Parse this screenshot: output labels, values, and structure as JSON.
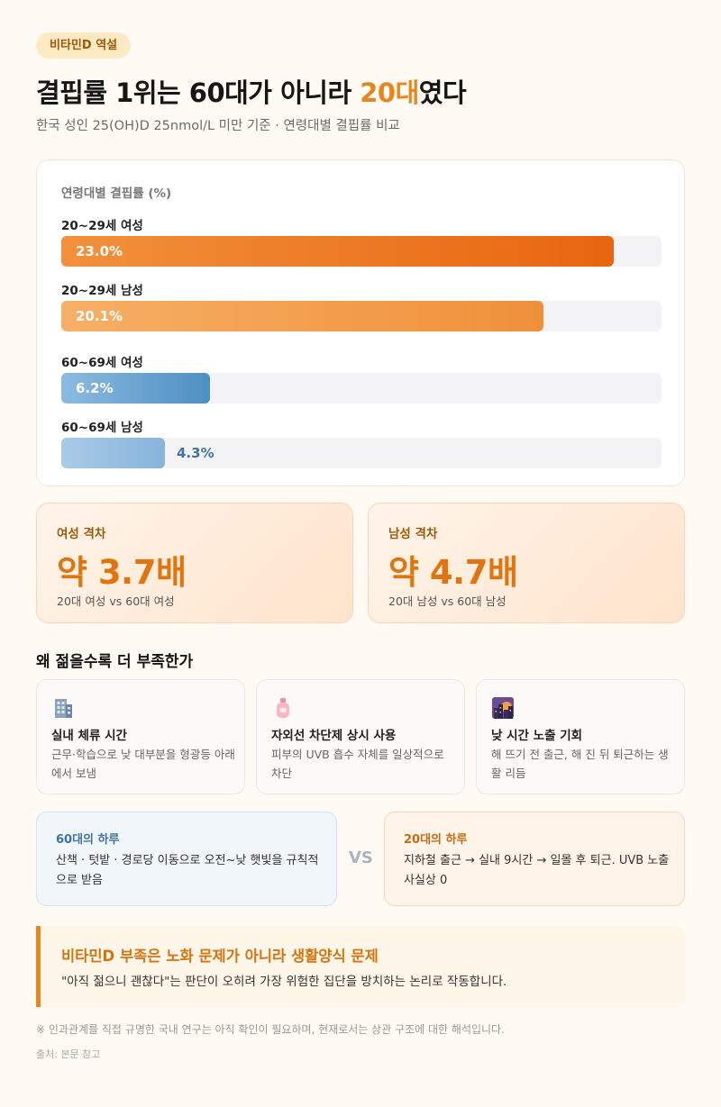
{
  "tag": "비타민D 역설",
  "title": {
    "prefix": "결핍률 1위는 60대가 아니라 ",
    "highlight": "20대",
    "suffix": "였다"
  },
  "subtitle": "한국 성인 25(OH)D 25nmol/L 미만 기준 · 연령대별 결핍률 비교",
  "chart_data": {
    "type": "bar",
    "orientation": "horizontal",
    "title": "연령대별 결핍률 (%)",
    "categories": [
      "20~29세 여성",
      "20~29세 남성",
      "60~69세 여성",
      "60~69세 남성"
    ],
    "values": [
      23.0,
      20.1,
      6.2,
      4.3
    ],
    "value_labels": [
      "23.0%",
      "20.1%",
      "6.2%",
      "4.3%"
    ],
    "xlim": [
      0,
      25
    ],
    "colors": [
      "#ef7f23",
      "#f3a453",
      "#4d8fc2",
      "#8fbadc"
    ]
  },
  "gaps": [
    {
      "label": "여성 격차",
      "value": "약 3.7배",
      "note": "20대 여성 vs 60대 여성"
    },
    {
      "label": "남성 격차",
      "value": "약 4.7배",
      "note": "20대 남성 vs 60대 남성"
    }
  ],
  "section_title": "왜 젊을수록 더 부족한가",
  "reasons": [
    {
      "icon": "office-building-icon",
      "title": "실내 체류 시간",
      "desc": "근무·학습으로 낮 대부분을 형광등 아래에서 보냄"
    },
    {
      "icon": "sunscreen-lotion-icon",
      "title": "자외선 차단제 상시 사용",
      "desc": "피부의 UVB 흡수 자체를 일상적으로 차단"
    },
    {
      "icon": "city-dusk-icon",
      "title": "낮 시간 노출 기회",
      "desc": "해 뜨기 전 출근, 해 진 뒤 퇴근하는 생활 리듬"
    }
  ],
  "day_compare": {
    "old": {
      "title": "60대의 하루",
      "desc": "산책 · 텃밭 · 경로당 이동으로 오전~낮 햇빛을 규칙적으로 받음"
    },
    "vs": "VS",
    "young": {
      "title": "20대의 하루",
      "desc": "지하철 출근 → 실내 9시간 → 일몰 후 퇴근. UVB 노출 사실상 0"
    }
  },
  "callout": {
    "title": "비타민D 부족은 노화 문제가 아니라 생활양식 문제",
    "body": "\"아직 젊으니 괜찮다\"는 판단이 오히려 가장 위험한 집단을 방치하는 논리로 작동합니다."
  },
  "footnote": "※ 인과관계를 직접 규명한 국내 연구는 아직 확인이 필요하며, 현재로서는 상관 구조에 대한 해석입니다.",
  "source": "출처: 본문 참고",
  "colors": {
    "accent": "#e8861e",
    "young_bar": "#ef7f23",
    "old_bar": "#4d8fc2",
    "background": "#fffaf3"
  }
}
